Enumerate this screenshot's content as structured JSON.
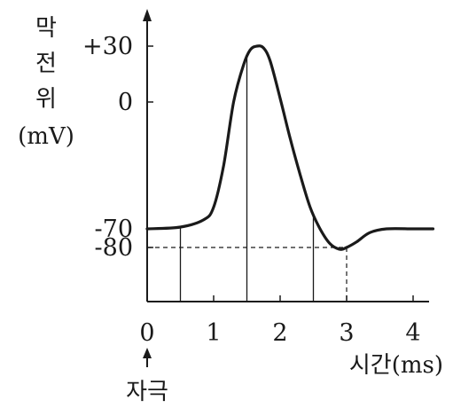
{
  "chart_data": {
    "type": "line",
    "ylabel_lines": [
      "막",
      "전",
      "위",
      "(mV)"
    ],
    "xlabel": "시간(ms)",
    "stimulus_label": "자극",
    "stimulus_x": 0,
    "x_ticks": [
      "0",
      "1",
      "2",
      "3",
      "4"
    ],
    "y_ticks": [
      {
        "label": "+30",
        "value": 30
      },
      {
        "label": "0",
        "value": 0
      },
      {
        "label": "-70",
        "value": -70
      },
      {
        "label": "-80",
        "value": -80
      }
    ],
    "xlim": [
      0,
      4.3
    ],
    "ylim": [
      -100,
      45
    ],
    "vertical_markers": [
      0.5,
      1.5,
      2.5
    ],
    "dashed_reference": {
      "x": 3,
      "y": -80
    },
    "series": [
      {
        "x": [
          0,
          0.5,
          0.85,
          1.0,
          1.15,
          1.3,
          1.45,
          1.55,
          1.65,
          1.75,
          1.85,
          2.0,
          2.15,
          2.3,
          2.45,
          2.6,
          2.75,
          2.9,
          3.0,
          3.15,
          3.35,
          3.6,
          4.0,
          4.3
        ],
        "y": [
          -70,
          -69,
          -65,
          -58,
          -35,
          0,
          20,
          28,
          30,
          29,
          22,
          2,
          -20,
          -40,
          -58,
          -70,
          -78,
          -81,
          -80,
          -77,
          -72,
          -70,
          -70,
          -70
        ]
      }
    ]
  }
}
